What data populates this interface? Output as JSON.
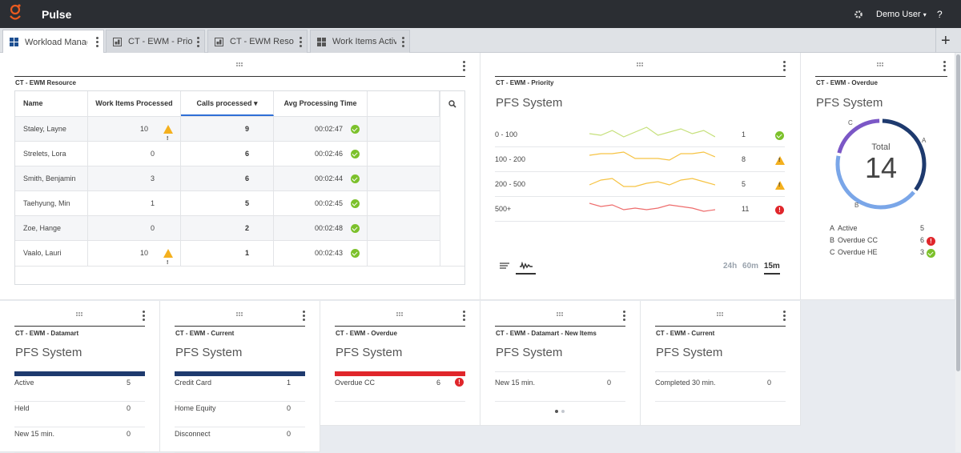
{
  "app": {
    "title": "Pulse",
    "user": "Demo User",
    "help": "?"
  },
  "colors": {
    "topbar": "#2b2e33",
    "logo": "#ea5a1f",
    "ok": "#7cc12b",
    "warning": "#f4b01e",
    "error": "#e0262b",
    "navy": "#1e3a6e",
    "blue_light": "#7aa6e8",
    "purple": "#7b57c6"
  },
  "tabs": [
    {
      "label": "Workload Manage",
      "active": true
    },
    {
      "label": "CT - EWM - Priority"
    },
    {
      "label": "CT - EWM Resourc"
    },
    {
      "label": "Work Items Activit"
    }
  ],
  "resource_widget": {
    "title": "CT - EWM Resource",
    "columns": [
      "Name",
      "Work Items Processed",
      "Calls processed ▾",
      "Avg Processing Time"
    ],
    "rows": [
      {
        "name": "Staley, Layne",
        "items": "10",
        "items_status": "warning",
        "calls": "9",
        "time": "00:02:47",
        "time_status": "ok"
      },
      {
        "name": "Strelets, Lora",
        "items": "0",
        "items_status": "",
        "calls": "6",
        "time": "00:02:46",
        "time_status": "ok"
      },
      {
        "name": "Smith, Benjamin",
        "items": "3",
        "items_status": "",
        "calls": "6",
        "time": "00:02:44",
        "time_status": "ok"
      },
      {
        "name": "Taehyung, Min",
        "items": "1",
        "items_status": "",
        "calls": "5",
        "time": "00:02:45",
        "time_status": "ok"
      },
      {
        "name": "Zoe, Hange",
        "items": "0",
        "items_status": "",
        "calls": "2",
        "time": "00:02:48",
        "time_status": "ok"
      },
      {
        "name": "Vaalo, Lauri",
        "items": "10",
        "items_status": "warning",
        "calls": "1",
        "time": "00:02:43",
        "time_status": "ok"
      }
    ]
  },
  "priority_widget": {
    "title": "CT - EWM - Priority",
    "subtitle": "PFS System",
    "rows": [
      {
        "label": "0 - 100",
        "value": "1",
        "status": "ok",
        "color": "#c5e07a",
        "spark": [
          5,
          4,
          7,
          3,
          6,
          9,
          4,
          6,
          8,
          5,
          7,
          3
        ]
      },
      {
        "label": "100 - 200",
        "value": "8",
        "status": "warning",
        "color": "#f6c343",
        "spark": [
          7,
          8,
          8,
          9,
          5,
          5,
          5,
          4,
          8,
          8,
          9,
          6
        ]
      },
      {
        "label": "200 - 500",
        "value": "5",
        "status": "warning",
        "color": "#f6c343",
        "spark": [
          4,
          7,
          8,
          3,
          3,
          5,
          6,
          4,
          7,
          8,
          6,
          4
        ]
      },
      {
        "label": "500+",
        "value": "11",
        "status": "error",
        "color": "#ee6c6c",
        "spark": [
          8,
          6,
          7,
          4,
          5,
          4,
          5,
          7,
          6,
          5,
          3,
          4
        ]
      }
    ],
    "time_ranges": [
      "24h",
      "60m",
      "15m"
    ],
    "selected_range": "15m"
  },
  "overdue_donut": {
    "title": "CT - EWM - Overdue",
    "subtitle": "PFS System",
    "total_label": "Total",
    "total": "14",
    "segments": [
      {
        "key": "A",
        "value": 5,
        "color": "#1e3a6e"
      },
      {
        "key": "B",
        "value": 6,
        "color": "#7aa6e8"
      },
      {
        "key": "C",
        "value": 3,
        "color": "#7b57c6"
      }
    ],
    "legend": [
      {
        "key": "A",
        "label": "Active",
        "value": "5",
        "status": ""
      },
      {
        "key": "B",
        "label": "Overdue CC",
        "value": "6",
        "status": "error"
      },
      {
        "key": "C",
        "label": "Overdue HE",
        "value": "3",
        "status": "ok"
      }
    ]
  },
  "bottom_widgets": [
    {
      "title": "CT - EWM - Datamart",
      "subtitle": "PFS System",
      "bar_color": "#1e3a6e",
      "rows": [
        {
          "label": "Active",
          "value": "5"
        },
        {
          "label": "Held",
          "value": "0"
        },
        {
          "label": "New 15 min.",
          "value": "0"
        }
      ]
    },
    {
      "title": "CT - EWM - Current",
      "subtitle": "PFS System",
      "bar_color": "#1e3a6e",
      "rows": [
        {
          "label": "Credit Card",
          "value": "1"
        },
        {
          "label": "Home Equity",
          "value": "0"
        },
        {
          "label": "Disconnect",
          "value": "0"
        }
      ]
    },
    {
      "title": "CT - EWM - Overdue",
      "subtitle": "PFS System",
      "bar_color": "#e0262b",
      "rows": [
        {
          "label": "Overdue CC",
          "value": "6",
          "status": "error"
        }
      ]
    },
    {
      "title": "CT - EWM - Datamart - New Items",
      "subtitle": "PFS System",
      "bar_color": "",
      "rows": [
        {
          "label": "New 15 min.",
          "value": "0"
        }
      ]
    },
    {
      "title": "CT - EWM - Current",
      "subtitle": "PFS System",
      "bar_color": "",
      "rows": [
        {
          "label": "Completed 30 min.",
          "value": "0"
        }
      ]
    }
  ]
}
